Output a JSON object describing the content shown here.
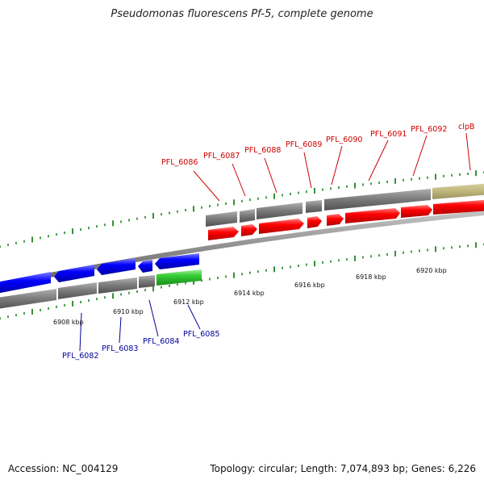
{
  "title": "Pseudomonas fluorescens Pf-5, complete genome",
  "footer": {
    "accession": "Accession: NC_004129",
    "summary": "Topology: circular; Length: 7,074,893 bp; Genes: 6,226"
  },
  "colors": {
    "forward_gene": "#ff0000",
    "reverse_gene": "#0000ff",
    "highlight_gene": "#33cc33",
    "orf_gray": "#7a7a7a",
    "orf_olive": "#bfb67a",
    "backbone": "#8c8c8c",
    "tick": "#007700",
    "forward_label": "#cc0000",
    "reverse_label": "#000099"
  },
  "axis": {
    "unit": "kbp",
    "tick_labels": [
      "6908 kbp",
      "6910 kbp",
      "6912 kbp",
      "6914 kbp",
      "6916 kbp",
      "6918 kbp",
      "6920 kbp"
    ]
  },
  "genes_forward": [
    {
      "name": "PFL_6086"
    },
    {
      "name": "PFL_6087"
    },
    {
      "name": "PFL_6088"
    },
    {
      "name": "PFL_6089"
    },
    {
      "name": "PFL_6090"
    },
    {
      "name": "PFL_6091"
    },
    {
      "name": "PFL_6092"
    },
    {
      "name": "clpB"
    }
  ],
  "genes_reverse": [
    {
      "name": "PFL_6082"
    },
    {
      "name": "PFL_6083"
    },
    {
      "name": "PFL_6084"
    },
    {
      "name": "PFL_6085"
    }
  ]
}
